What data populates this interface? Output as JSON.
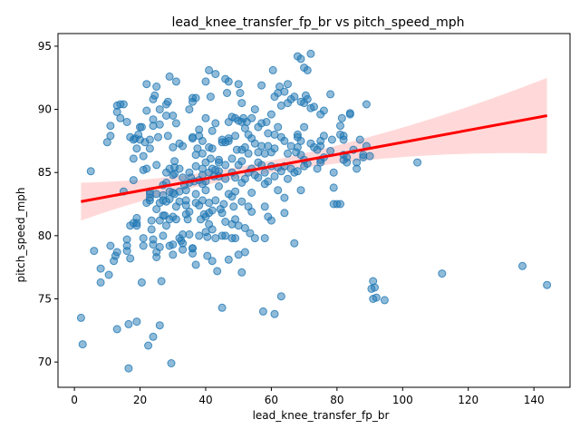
{
  "chart_data": {
    "type": "scatter",
    "title": "lead_knee_transfer_fp_br vs pitch_speed_mph",
    "xlabel": "lead_knee_transfer_fp_br",
    "ylabel": "pitch_speed_mph",
    "xlim": [
      -5,
      151
    ],
    "ylim": [
      68,
      96
    ],
    "x_ticks": [
      0,
      20,
      40,
      60,
      80,
      100,
      120,
      140
    ],
    "y_ticks": [
      70,
      75,
      80,
      85,
      90,
      95
    ],
    "grid": false,
    "legend": "none",
    "colors": {
      "points": "#1f77b4",
      "regression_line": "#ff0000",
      "confidence_band": "#ff0000"
    },
    "regression": {
      "x": [
        2,
        144
      ],
      "y": [
        82.7,
        89.5
      ],
      "ci_lower": [
        81.1,
        86.6
      ],
      "ci_upper": [
        84.1,
        92.6
      ]
    },
    "points": [
      [
        2,
        73.5
      ],
      [
        2.5,
        71.4
      ],
      [
        5,
        85.1
      ],
      [
        6,
        78.8
      ],
      [
        8,
        77.4
      ],
      [
        8,
        76.3
      ],
      [
        10,
        87.4
      ],
      [
        10.5,
        76.9
      ],
      [
        11,
        79.2
      ],
      [
        11,
        88.7
      ],
      [
        11,
        87.9
      ],
      [
        12,
        78.0
      ],
      [
        12.5,
        78.4
      ],
      [
        13,
        72.6
      ],
      [
        13,
        90.3
      ],
      [
        13,
        78.7
      ],
      [
        13,
        89.8
      ],
      [
        14,
        89.3
      ],
      [
        14,
        90.4
      ],
      [
        15,
        83.5
      ],
      [
        15,
        90.4
      ],
      [
        16,
        79.7
      ],
      [
        16,
        79.2
      ],
      [
        16,
        78.8
      ],
      [
        16,
        89.0
      ],
      [
        16.5,
        73.0
      ],
      [
        16.5,
        69.5
      ],
      [
        17,
        80.8
      ],
      [
        17,
        78.2
      ],
      [
        17,
        87.8
      ],
      [
        18,
        86.1
      ],
      [
        18,
        84.4
      ],
      [
        18,
        87.6
      ],
      [
        18,
        81.0
      ],
      [
        18.5,
        87.7
      ],
      [
        19,
        81.0
      ],
      [
        19,
        80.8
      ],
      [
        19,
        73.2
      ],
      [
        19,
        81.4
      ],
      [
        19,
        86.9
      ],
      [
        19.5,
        88.0
      ],
      [
        20,
        88.6
      ],
      [
        20,
        87.6
      ],
      [
        20.5,
        88.6
      ],
      [
        20.5,
        76.3
      ],
      [
        21,
        85.2
      ],
      [
        21,
        79.8
      ],
      [
        21,
        79.2
      ],
      [
        21,
        86.3
      ],
      [
        21.5,
        87.4
      ],
      [
        22,
        92.0
      ],
      [
        22,
        85.3
      ],
      [
        22,
        82.6
      ],
      [
        22,
        89.9
      ],
      [
        22.5,
        71.3
      ],
      [
        23,
        83.0
      ],
      [
        23,
        83.5
      ],
      [
        23,
        83.3
      ],
      [
        23,
        82.8
      ],
      [
        23,
        87.6
      ],
      [
        23,
        86.9
      ],
      [
        23.5,
        80.5
      ],
      [
        23.5,
        81.2
      ],
      [
        24,
        72.0
      ],
      [
        24,
        79.7
      ],
      [
        24,
        79.3
      ],
      [
        24,
        88.7
      ],
      [
        24,
        89.2
      ],
      [
        24,
        90.8
      ],
      [
        24.5,
        91.1
      ],
      [
        25,
        85.6
      ],
      [
        25,
        83.3
      ],
      [
        25,
        82.1
      ],
      [
        25,
        78.7
      ],
      [
        25,
        78.3
      ],
      [
        25,
        91.8
      ],
      [
        25.5,
        87.8
      ],
      [
        26,
        72.9
      ],
      [
        26,
        81.2
      ],
      [
        26,
        82.6
      ],
      [
        26,
        79.1
      ],
      [
        26,
        88.8
      ],
      [
        26,
        90.0
      ],
      [
        26.5,
        76.4
      ],
      [
        27,
        83.2
      ],
      [
        27,
        82.8
      ],
      [
        27,
        84.0
      ],
      [
        27,
        80.0
      ],
      [
        27,
        81.6
      ],
      [
        27.5,
        81.6
      ],
      [
        28,
        85.0
      ],
      [
        28,
        84.2
      ],
      [
        28,
        82.7
      ],
      [
        28,
        80.8
      ],
      [
        28,
        89.5
      ],
      [
        28,
        90.4
      ],
      [
        28.5,
        87.9
      ],
      [
        28.5,
        90.6
      ],
      [
        29,
        92.6
      ],
      [
        29,
        83.5
      ],
      [
        29,
        82.9
      ],
      [
        29,
        81.3
      ],
      [
        29,
        79.2
      ],
      [
        29,
        85.3
      ],
      [
        29.5,
        69.9
      ],
      [
        30,
        84.8
      ],
      [
        30,
        83.4
      ],
      [
        30,
        81.5
      ],
      [
        30,
        78.5
      ],
      [
        30,
        79.3
      ],
      [
        30,
        89.5
      ],
      [
        30,
        87.0
      ],
      [
        30.5,
        85.9
      ],
      [
        30.5,
        85.4
      ],
      [
        30.5,
        84.9
      ],
      [
        30.5,
        83.3
      ],
      [
        31,
        92.2
      ],
      [
        31,
        88.9
      ],
      [
        31,
        82.3
      ],
      [
        31,
        81.3
      ],
      [
        32,
        87.3
      ],
      [
        32,
        85.3
      ],
      [
        32,
        83.5
      ],
      [
        32,
        82.7
      ],
      [
        32,
        79.8
      ],
      [
        32.5,
        79.6
      ],
      [
        33,
        79.4
      ],
      [
        33,
        80.1
      ],
      [
        33,
        78.9
      ],
      [
        33,
        84.6
      ],
      [
        33,
        87.1
      ],
      [
        33.5,
        84.0
      ],
      [
        34,
        82.4
      ],
      [
        34,
        81.7
      ],
      [
        34,
        82.8
      ],
      [
        34,
        83.6
      ],
      [
        34.5,
        81.3
      ],
      [
        35,
        90.0
      ],
      [
        35,
        84.2
      ],
      [
        35,
        85.0
      ],
      [
        35,
        80.1
      ],
      [
        35,
        81.9
      ],
      [
        35.5,
        84.6
      ],
      [
        36,
        90.9
      ],
      [
        36,
        90.6
      ],
      [
        36,
        87.8
      ],
      [
        36,
        87.7
      ],
      [
        36,
        79.0
      ],
      [
        36,
        78.6
      ],
      [
        36,
        79.0
      ],
      [
        36.5,
        84.3
      ],
      [
        37,
        86.4
      ],
      [
        37,
        83.3
      ],
      [
        37,
        82.6
      ],
      [
        37,
        85.5
      ],
      [
        37,
        77.7
      ],
      [
        37,
        90.9
      ],
      [
        37.5,
        86.9
      ],
      [
        38,
        88.4
      ],
      [
        38,
        87.9
      ],
      [
        38,
        84.4
      ],
      [
        38,
        82.4
      ],
      [
        38,
        80.0
      ],
      [
        38.5,
        81.3
      ],
      [
        39,
        87.5
      ],
      [
        39,
        86.5
      ],
      [
        39,
        85.3
      ],
      [
        39,
        84.8
      ],
      [
        39,
        84.1
      ],
      [
        39,
        82.8
      ],
      [
        39.5,
        81.7
      ],
      [
        40,
        92.2
      ],
      [
        40,
        89.3
      ],
      [
        40,
        85.8
      ],
      [
        40,
        84.3
      ],
      [
        40,
        83.6
      ],
      [
        40,
        81.5
      ],
      [
        40,
        80.3
      ],
      [
        40.5,
        79.9
      ],
      [
        40.5,
        78.4
      ],
      [
        41,
        93.1
      ],
      [
        41,
        87.0
      ],
      [
        41,
        85.0
      ],
      [
        41,
        82.6
      ],
      [
        41,
        81.8
      ],
      [
        41,
        80.9
      ],
      [
        41.5,
        91.0
      ],
      [
        41.5,
        86.1
      ],
      [
        42,
        88.3
      ],
      [
        42,
        86.9
      ],
      [
        42,
        85.3
      ],
      [
        42,
        82.0
      ],
      [
        42,
        80.5
      ],
      [
        42,
        78.0
      ],
      [
        42.5,
        84.7
      ],
      [
        43,
        92.8
      ],
      [
        43,
        88.9
      ],
      [
        43,
        85.2
      ],
      [
        43,
        82.8
      ],
      [
        43,
        79.8
      ],
      [
        43.5,
        77.2
      ],
      [
        44,
        86.0
      ],
      [
        44,
        85.1
      ],
      [
        44,
        85.8
      ],
      [
        44,
        84.7
      ],
      [
        44,
        83.9
      ],
      [
        44.5,
        82.1
      ],
      [
        45,
        87.6
      ],
      [
        45,
        87.4
      ],
      [
        45,
        81.8
      ],
      [
        45,
        80.0
      ],
      [
        45,
        74.3
      ],
      [
        45.5,
        82.5
      ],
      [
        46,
        92.4
      ],
      [
        46,
        87.4
      ],
      [
        46,
        85.6
      ],
      [
        46,
        84.5
      ],
      [
        46,
        81.1
      ],
      [
        46,
        80.0
      ],
      [
        46.5,
        91.3
      ],
      [
        47,
        92.2
      ],
      [
        47,
        89.0
      ],
      [
        47,
        87.5
      ],
      [
        47,
        87.7
      ],
      [
        47,
        83.3
      ],
      [
        47,
        78.1
      ],
      [
        48,
        89.4
      ],
      [
        48,
        86.1
      ],
      [
        48,
        85.0
      ],
      [
        48,
        83.1
      ],
      [
        48,
        80.9
      ],
      [
        48,
        79.8
      ],
      [
        48.5,
        82.3
      ],
      [
        49,
        89.3
      ],
      [
        49,
        87.9
      ],
      [
        49,
        84.6
      ],
      [
        49,
        83.5
      ],
      [
        49,
        81.3
      ],
      [
        49,
        79.8
      ],
      [
        49.5,
        86.8
      ],
      [
        50,
        92.0
      ],
      [
        50,
        89.1
      ],
      [
        50,
        85.6
      ],
      [
        50,
        80.8
      ],
      [
        50,
        78.5
      ],
      [
        50.5,
        91.3
      ],
      [
        51,
        90.5
      ],
      [
        51,
        89.0
      ],
      [
        51,
        86.8
      ],
      [
        51,
        85.9
      ],
      [
        51,
        84.2
      ],
      [
        51,
        82.7
      ],
      [
        51,
        77.1
      ],
      [
        51.5,
        89.3
      ],
      [
        52,
        88.5
      ],
      [
        52,
        87.0
      ],
      [
        52,
        84.5
      ],
      [
        52,
        80.6
      ],
      [
        52,
        78.7
      ],
      [
        52.5,
        89.0
      ],
      [
        53,
        88.0
      ],
      [
        53,
        86.5
      ],
      [
        53,
        85.0
      ],
      [
        53,
        82.3
      ],
      [
        53.5,
        80.2
      ],
      [
        54,
        89.3
      ],
      [
        54,
        87.7
      ],
      [
        54,
        85.3
      ],
      [
        54,
        83.4
      ],
      [
        54,
        81.9
      ],
      [
        55,
        90.0
      ],
      [
        55,
        87.3
      ],
      [
        55,
        84.8
      ],
      [
        55,
        79.8
      ],
      [
        56,
        88.6
      ],
      [
        56,
        86.6
      ],
      [
        56,
        85.8
      ],
      [
        56,
        84.6
      ],
      [
        57,
        91.9
      ],
      [
        57,
        88.9
      ],
      [
        57,
        87.1
      ],
      [
        57,
        85.6
      ],
      [
        57.5,
        74.0
      ],
      [
        58,
        86.5
      ],
      [
        58,
        85.0
      ],
      [
        58,
        84.1
      ],
      [
        58,
        82.3
      ],
      [
        58,
        79.8
      ],
      [
        58.5,
        89.0
      ],
      [
        59,
        88.1
      ],
      [
        59,
        87.1
      ],
      [
        59,
        84.3
      ],
      [
        59,
        81.5
      ],
      [
        60,
        89.6
      ],
      [
        60,
        86.6
      ],
      [
        60,
        85.5
      ],
      [
        60,
        81.2
      ],
      [
        60.5,
        93.1
      ],
      [
        61,
        91.0
      ],
      [
        61,
        88.0
      ],
      [
        61,
        86.9
      ],
      [
        61,
        84.7
      ],
      [
        61,
        73.8
      ],
      [
        62,
        91.3
      ],
      [
        62,
        88.6
      ],
      [
        62,
        85.4
      ],
      [
        62,
        83.6
      ],
      [
        62.5,
        91.8
      ],
      [
        63,
        90.3
      ],
      [
        63,
        87.8
      ],
      [
        63,
        85.1
      ],
      [
        63,
        75.2
      ],
      [
        64,
        91.4
      ],
      [
        64,
        87.5
      ],
      [
        64,
        85.5
      ],
      [
        64,
        83.0
      ],
      [
        64,
        81.8
      ],
      [
        65,
        90.5
      ],
      [
        65,
        92.0
      ],
      [
        65,
        86.5
      ],
      [
        65,
        84.5
      ],
      [
        66,
        90.8
      ],
      [
        66,
        87.1
      ],
      [
        66,
        85.3
      ],
      [
        67,
        91.0
      ],
      [
        67,
        85.0
      ],
      [
        67,
        79.4
      ],
      [
        67.5,
        86.6
      ],
      [
        68,
        94.2
      ],
      [
        68,
        88.0
      ],
      [
        68,
        87.0
      ],
      [
        68,
        85.1
      ],
      [
        68,
        87.8
      ],
      [
        69,
        94.0
      ],
      [
        69,
        90.6
      ],
      [
        69,
        87.5
      ],
      [
        69,
        86.4
      ],
      [
        69,
        83.6
      ],
      [
        70,
        93.3
      ],
      [
        70,
        90.5
      ],
      [
        70,
        88.6
      ],
      [
        70,
        86.0
      ],
      [
        70,
        85.5
      ],
      [
        70.5,
        91.1
      ],
      [
        71,
        93.1
      ],
      [
        71,
        90.8
      ],
      [
        71,
        85.7
      ],
      [
        72,
        94.4
      ],
      [
        72,
        90.1
      ],
      [
        72,
        87.3
      ],
      [
        73,
        90.2
      ],
      [
        73,
        87.0
      ],
      [
        74,
        86.8
      ],
      [
        74,
        85.3
      ],
      [
        75,
        89.6
      ],
      [
        75,
        87.5
      ],
      [
        75,
        87.1
      ],
      [
        75,
        86.0
      ],
      [
        75,
        85.8
      ],
      [
        76,
        89.9
      ],
      [
        76,
        87.9
      ],
      [
        76,
        86.2
      ],
      [
        78,
        91.2
      ],
      [
        78,
        86.7
      ],
      [
        78.5,
        87.6
      ],
      [
        79,
        85.0
      ],
      [
        79,
        83.8
      ],
      [
        79,
        82.5
      ],
      [
        80,
        82.5
      ],
      [
        81,
        88.7
      ],
      [
        81,
        88.0
      ],
      [
        81,
        82.5
      ],
      [
        81.5,
        89.3
      ],
      [
        82,
        87.9
      ],
      [
        82,
        87.6
      ],
      [
        82,
        86.4
      ],
      [
        82,
        86.0
      ],
      [
        83,
        86.2
      ],
      [
        83,
        85.8
      ],
      [
        84,
        89.6
      ],
      [
        84,
        89.7
      ],
      [
        85,
        86.8
      ],
      [
        86,
        85.8
      ],
      [
        86,
        85.3
      ],
      [
        87,
        87.6
      ],
      [
        88,
        86.4
      ],
      [
        88,
        86.2
      ],
      [
        89,
        90.4
      ],
      [
        89,
        87.1
      ],
      [
        90,
        86.3
      ],
      [
        90.5,
        75.8
      ],
      [
        91,
        76.4
      ],
      [
        91,
        75.0
      ],
      [
        91.5,
        75.9
      ],
      [
        92,
        75.1
      ],
      [
        94.5,
        74.9
      ],
      [
        104.5,
        85.8
      ],
      [
        112,
        77.0
      ],
      [
        136.5,
        77.6
      ],
      [
        144,
        76.1
      ]
    ]
  }
}
